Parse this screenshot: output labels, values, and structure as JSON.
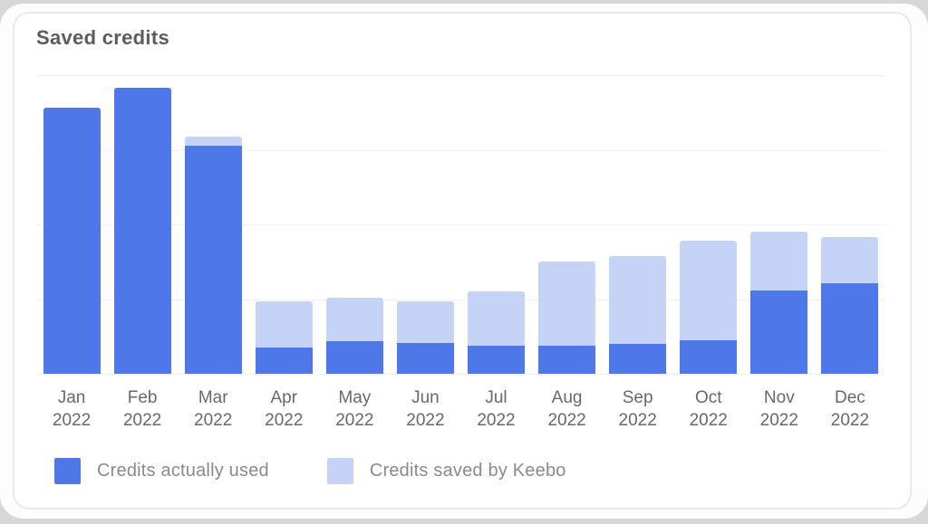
{
  "card": {
    "title": "Saved credits"
  },
  "colors": {
    "credits_used": "#4e77e7",
    "credits_saved": "#c5d3f7",
    "gridline": "#f0f0f6",
    "card_border": "#e8e9f3",
    "title_text": "#5c5c5c",
    "axis_text": "#686868",
    "legend_text": "#8a8a8a"
  },
  "chart_data": {
    "type": "bar",
    "stacked": true,
    "title": "Saved credits",
    "categories": [
      "Jan 2022",
      "Feb 2022",
      "Mar 2022",
      "Apr 2022",
      "May 2022",
      "Jun 2022",
      "Jul 2022",
      "Aug 2022",
      "Sep 2022",
      "Oct 2022",
      "Nov 2022",
      "Dec 2022"
    ],
    "series": [
      {
        "name": "Credits actually used",
        "color": "#4e77e7",
        "values": [
          356,
          383,
          305,
          35,
          44,
          41,
          38,
          38,
          40,
          45,
          112,
          121
        ]
      },
      {
        "name": "Credits saved by Keebo",
        "color": "#c5d3f7",
        "values": [
          0,
          0,
          13,
          62,
          58,
          56,
          72,
          112,
          118,
          133,
          78,
          62
        ]
      }
    ],
    "xlabel": "",
    "ylabel": "",
    "ylim": [
      0,
      400
    ],
    "gridline_step": 100,
    "grid": true,
    "y_axis_labels_visible": false,
    "legend_position": "bottom"
  }
}
